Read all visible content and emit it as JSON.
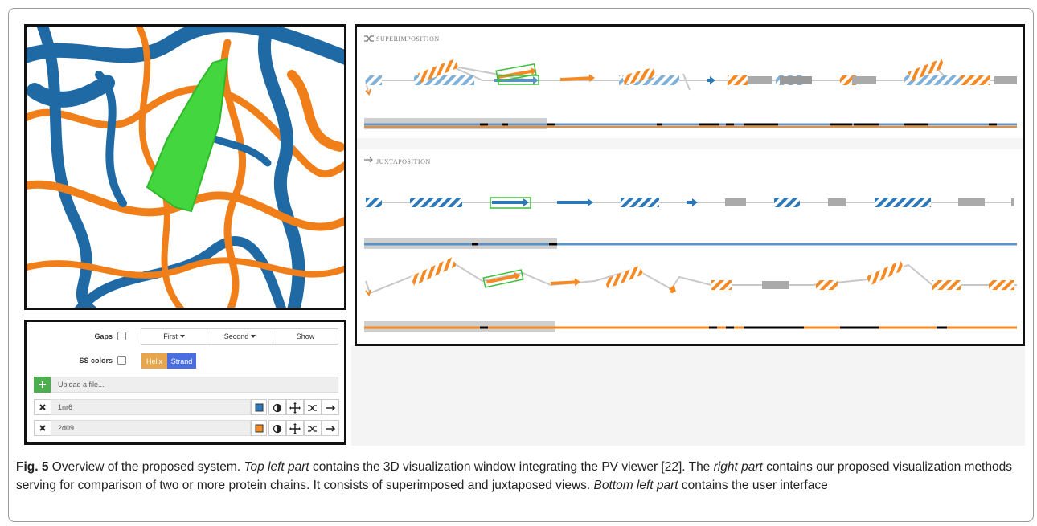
{
  "figure": {
    "panels": {
      "superimposition": {
        "title": "SUPERIMPOSITION"
      },
      "juxtaposition": {
        "title": "JUXTAPOSITION"
      }
    },
    "controls": {
      "gaps_label": "Gaps",
      "ss_colors_label": "SS colors",
      "buttons": [
        "First",
        "Second",
        "Show"
      ],
      "ss_buttons": [
        "Helix",
        "Strand"
      ],
      "upload_placeholder": "Upload a file...",
      "chains": [
        "1nr6",
        "2d09"
      ]
    },
    "caption": {
      "label": "Fig. 5",
      "segments": [
        {
          "text": "Overview of the proposed system. ",
          "italic": false
        },
        {
          "text": "Top left part",
          "italic": true
        },
        {
          "text": " contains the 3D visualization window integrating the PV viewer [22]. The ",
          "italic": false
        },
        {
          "text": "right part",
          "italic": true
        },
        {
          "text": " contains our proposed visualization methods serving for comparison of two or more protein chains. It consists of superimposed and juxtaposed views. ",
          "italic": false
        },
        {
          "text": "Bottom left part",
          "italic": true
        },
        {
          "text": " contains the user interface",
          "italic": false
        }
      ]
    }
  }
}
